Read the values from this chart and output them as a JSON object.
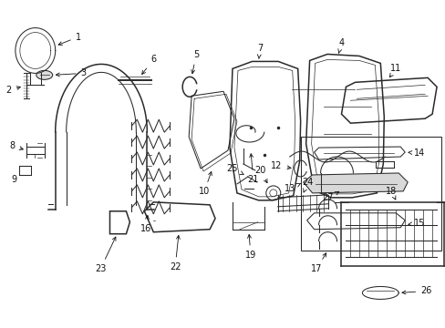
{
  "bg_color": "#ffffff",
  "line_color": "#2a2a2a",
  "label_color": "#111111",
  "figsize": [
    4.89,
    3.6
  ],
  "dpi": 100,
  "font_size": 7.0,
  "arrow_lw": 0.6,
  "lw_thick": 1.1,
  "lw_med": 0.75,
  "lw_thin": 0.5
}
